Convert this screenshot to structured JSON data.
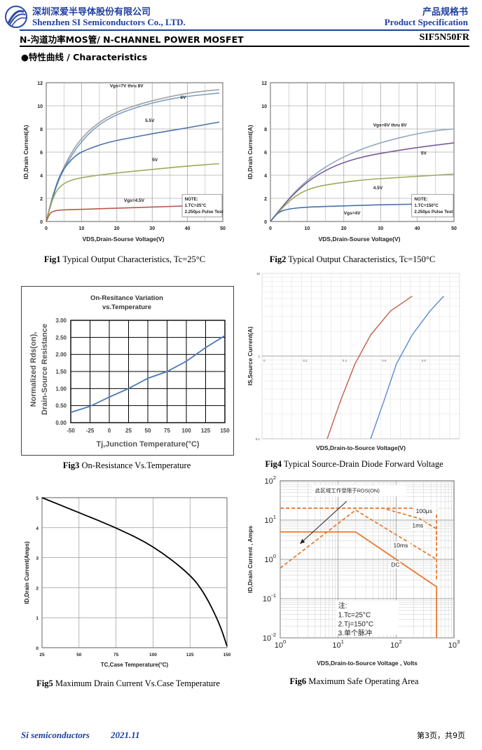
{
  "header": {
    "company_cn": "深圳深爱半导体股份有限公司",
    "company_en": "Shenzhen SI Semiconductors Co., LTD.",
    "spec_cn": "产品规格书",
    "spec_en": "Product Specification",
    "product_title": "N-沟道功率MOS管/ N-CHANNEL POWER MOSFET",
    "part_number": "SIF5N50FR",
    "section_title": "●特性曲线 / Characteristics"
  },
  "figures": {
    "fig1": {
      "num": "Fig1",
      "caption": " Typical Output Characteristics, Tc=25°C"
    },
    "fig2": {
      "num": "Fig2",
      "caption": " Typical Output Characteristics, Tc=150°C"
    },
    "fig3": {
      "num": "Fig3",
      "caption": " On-Resistance Vs.Temperature"
    },
    "fig4": {
      "num": "Fig4",
      "caption": " Typical Source-Drain Diode Forward Voltage"
    },
    "fig5": {
      "num": "Fig5",
      "caption": " Maximum Drain Current Vs.Case Temperature"
    },
    "fig6": {
      "num": "Fig6",
      "caption": " Maximum Safe Operating Area"
    }
  },
  "footer": {
    "company": "Si semiconductors",
    "date": "2021.11",
    "page": "第3页，共9页"
  },
  "chart_data": [
    {
      "type": "line",
      "id": "fig1",
      "xlabel": "VDS,Drain-Sourse Voltage(V)",
      "ylabel": "ID,Drain Current(A)",
      "xlim": [
        0,
        50
      ],
      "ylim": [
        0,
        12
      ],
      "xticks": [
        "0",
        "10",
        "20",
        "30",
        "40",
        "50"
      ],
      "yticks": [
        "0",
        "2",
        "4",
        "6",
        "8",
        "10",
        "12"
      ],
      "note": [
        "NOTE:",
        "1.TC=25°C",
        "2.250μs Pulse Test"
      ],
      "series": [
        {
          "name": "Vgs=7V thru 8V",
          "color": "#a0a0a0",
          "x": [
            0,
            2,
            5,
            9,
            14,
            20,
            28,
            35,
            42,
            49
          ],
          "y": [
            0,
            2.5,
            4.8,
            6.9,
            8.4,
            9.5,
            10.3,
            10.8,
            11.2,
            11.4
          ]
        },
        {
          "name": "6V",
          "color": "#7a9ec4",
          "x": [
            0,
            2,
            5,
            9,
            14,
            20,
            28,
            35,
            42,
            49
          ],
          "y": [
            0,
            2.4,
            4.6,
            6.6,
            8.2,
            9.3,
            10.1,
            10.6,
            10.9,
            11.1
          ]
        },
        {
          "name": "5.5V",
          "color": "#4a72a8",
          "x": [
            0,
            2,
            4,
            8,
            12,
            18,
            25,
            32,
            40,
            49
          ],
          "y": [
            0,
            2.3,
            4.2,
            5.7,
            6.3,
            6.9,
            7.3,
            7.7,
            8.1,
            8.6
          ]
        },
        {
          "name": "5V",
          "color": "#9aac5a",
          "x": [
            0,
            2,
            4,
            7,
            12,
            20,
            30,
            40,
            49
          ],
          "y": [
            0,
            2.2,
            3.1,
            3.6,
            3.9,
            4.2,
            4.5,
            4.8,
            5.0
          ]
        },
        {
          "name": "Vgs=4.5V",
          "color": "#b85a4a",
          "x": [
            0,
            1,
            2,
            4,
            10,
            20,
            30,
            40,
            49
          ],
          "y": [
            0,
            0.7,
            0.9,
            1.0,
            1.05,
            1.15,
            1.25,
            1.35,
            1.45
          ]
        }
      ]
    },
    {
      "type": "line",
      "id": "fig2",
      "xlabel": "VDS,Drain-Sourse Voltage(V)",
      "ylabel": "ID,Drain Current(A)",
      "xlim": [
        0,
        50
      ],
      "ylim": [
        0,
        12
      ],
      "xticks": [
        "0",
        "10",
        "20",
        "30",
        "40",
        "50"
      ],
      "yticks": [
        "0",
        "2",
        "4",
        "6",
        "8",
        "10",
        "12"
      ],
      "note": [
        "NOTE:",
        "1.TC=150°C",
        "2.250μs Pulse Test"
      ],
      "series": [
        {
          "name": "Vgs=6V thru 8V",
          "color": "#8fa8c0",
          "x": [
            0,
            3,
            7,
            12,
            18,
            25,
            32,
            40,
            46,
            50
          ],
          "y": [
            0,
            1.2,
            2.7,
            4.1,
            5.3,
            6.3,
            7.0,
            7.6,
            7.9,
            8.0
          ]
        },
        {
          "name": "5V",
          "color": "#7a5a9a",
          "x": [
            0,
            3,
            7,
            12,
            18,
            25,
            32,
            40,
            50
          ],
          "y": [
            0,
            1.2,
            2.6,
            3.9,
            4.9,
            5.6,
            6.0,
            6.4,
            6.8
          ]
        },
        {
          "name": "4.5V",
          "color": "#9aac5a",
          "x": [
            0,
            3,
            7,
            12,
            18,
            25,
            32,
            40,
            50
          ],
          "y": [
            0,
            1.1,
            2.3,
            3.0,
            3.3,
            3.6,
            3.75,
            3.9,
            4.1
          ]
        },
        {
          "name": "Vgs=4V",
          "color": "#4a72a8",
          "x": [
            0,
            2,
            5,
            10,
            20,
            30,
            40,
            50
          ],
          "y": [
            0,
            0.8,
            1.1,
            1.25,
            1.35,
            1.45,
            1.5,
            1.55
          ]
        }
      ]
    },
    {
      "type": "line",
      "id": "fig3",
      "title": "On-Resitance Variation vs.Temperature",
      "xlabel": "Tj,Junction Temperature(°C)",
      "ylabel": "Normalized Rds(on), Drain-Source Resistance",
      "xlim": [
        -50,
        150
      ],
      "ylim": [
        0,
        3
      ],
      "xticks": [
        "-50",
        "-25",
        "0",
        "25",
        "50",
        "75",
        "100",
        "125",
        "150"
      ],
      "yticks": [
        "0.00",
        "0.50",
        "1.00",
        "1.50",
        "2.00",
        "2.50",
        "3.00"
      ],
      "series": [
        {
          "name": "",
          "color": "#4a7ab8",
          "x": [
            -50,
            -25,
            0,
            25,
            50,
            75,
            100,
            125,
            150
          ],
          "y": [
            0.3,
            0.48,
            0.75,
            1.0,
            1.3,
            1.5,
            1.8,
            2.2,
            2.55
          ]
        }
      ]
    },
    {
      "type": "line",
      "id": "fig4",
      "xlabel": "VDS,Drain-to-Source Voltage(V)",
      "ylabel": "IS,Source Current(A)",
      "xscale": "linear",
      "yscale": "log",
      "xlim": [
        0,
        1.0
      ],
      "ylim": [
        0.1,
        10
      ],
      "xticks": [
        "0",
        "0.2",
        "0.4",
        "0.6",
        "0.8"
      ],
      "yticks": [
        "0.1",
        "1",
        "10"
      ],
      "series": [
        {
          "name": "",
          "color": "#c0604a",
          "x": [
            0.33,
            0.4,
            0.47,
            0.55,
            0.65,
            0.76
          ],
          "y": [
            0.1,
            0.3,
            0.8,
            1.8,
            3.5,
            5.3
          ]
        },
        {
          "name": "",
          "color": "#5a8ad0",
          "x": [
            0.55,
            0.62,
            0.68,
            0.76,
            0.85,
            0.92
          ],
          "y": [
            0.1,
            0.3,
            0.8,
            1.8,
            3.5,
            5.3
          ]
        }
      ]
    },
    {
      "type": "line",
      "id": "fig5",
      "xlabel": "TC,Case Temperature(°C)",
      "ylabel": "ID,Drain Current(Amps)",
      "xlim": [
        25,
        150
      ],
      "ylim": [
        0,
        5
      ],
      "xticks": [
        "25",
        "50",
        "75",
        "100",
        "125",
        "150"
      ],
      "yticks": [
        "0",
        "1",
        "2",
        "3",
        "4",
        "5"
      ],
      "series": [
        {
          "name": "",
          "color": "#000000",
          "x": [
            25,
            50,
            75,
            100,
            125,
            135,
            145,
            150
          ],
          "y": [
            5,
            4.5,
            4,
            3.4,
            2.45,
            1.8,
            0.8,
            0.05
          ]
        }
      ]
    },
    {
      "type": "line",
      "id": "fig6",
      "xlabel": "VDS,Drain-to-Source Voltage , Volts",
      "ylabel": "ID,Drain Current , Amps",
      "xscale": "log",
      "yscale": "log",
      "xlim": [
        1,
        1000
      ],
      "ylim": [
        0.01,
        100
      ],
      "xticks": [
        "10^0",
        "10^1",
        "10^2",
        "10^3"
      ],
      "yticks": [
        "10^-2",
        "10^-1",
        "10^0",
        "10^1",
        "10^2"
      ],
      "annotation": "此区域工作受限于RDS(ON)",
      "note": [
        "注:",
        "1.Tc=25°C",
        "2.Tj=150°C",
        "3.单个脉冲"
      ],
      "series": [
        {
          "name": "100μs",
          "color": "#e87a30",
          "dashed": true,
          "x": [
            1,
            80,
            500,
            500
          ],
          "y": [
            20,
            20,
            20,
            3
          ]
        },
        {
          "name": "1ms",
          "color": "#e87a30",
          "dashed": true,
          "x": [
            1,
            60,
            250,
            500,
            500
          ],
          "y": [
            20,
            20,
            11,
            6,
            0.3
          ]
        },
        {
          "name": "10ms",
          "color": "#e87a30",
          "dashed": true,
          "x": [
            1,
            20,
            500
          ],
          "y": [
            0.6,
            18,
            1.0
          ]
        },
        {
          "name": "DC",
          "color": "#e87a30",
          "dashed": false,
          "x": [
            1,
            20,
            500,
            500
          ],
          "y": [
            5,
            5,
            0.2,
            0.01
          ]
        }
      ]
    }
  ]
}
